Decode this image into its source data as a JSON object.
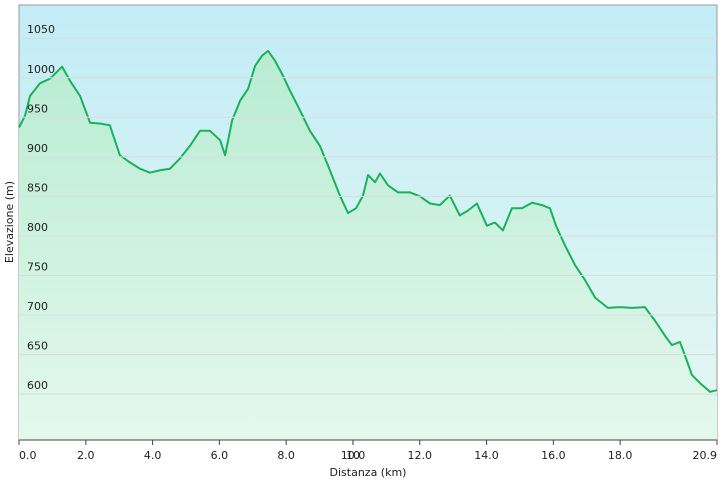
{
  "chart_data": {
    "type": "area",
    "xlabel": "Distanza  (km)",
    "ylabel": "Elevazione (m)",
    "x": [
      0,
      0.18,
      0.33,
      0.63,
      0.93,
      1.29,
      1.53,
      1.83,
      2.13,
      2.43,
      2.72,
      3.02,
      3.32,
      3.62,
      3.92,
      4.22,
      4.52,
      4.82,
      5.12,
      5.42,
      5.72,
      6.02,
      6.17,
      6.38,
      6.62,
      6.86,
      7.07,
      7.28,
      7.46,
      7.66,
      7.9,
      8.11,
      8.41,
      8.71,
      9.01,
      9.31,
      9.61,
      9.85,
      10.09,
      10.3,
      10.45,
      10.66,
      10.81,
      11.05,
      11.35,
      11.71,
      12.01,
      12.31,
      12.6,
      12.9,
      13.2,
      13.44,
      13.71,
      14.01,
      14.25,
      14.49,
      14.76,
      15.06,
      15.36,
      15.66,
      15.9,
      16.08,
      16.35,
      16.65,
      16.95,
      17.25,
      17.63,
      17.99,
      18.35,
      18.74,
      19.04,
      19.34,
      19.55,
      19.79,
      19.94,
      20.15,
      20.39,
      20.69,
      20.9
    ],
    "values": [
      937,
      952,
      977,
      993,
      999,
      1014,
      996,
      977,
      943,
      942,
      940,
      902,
      893,
      885,
      880,
      883,
      885,
      898,
      914,
      933,
      933,
      921,
      902,
      946,
      971,
      986,
      1015,
      1028,
      1034,
      1022,
      1003,
      984,
      959,
      933,
      914,
      883,
      851,
      829,
      835,
      851,
      877,
      868,
      879,
      864,
      855,
      855,
      850,
      841,
      839,
      851,
      826,
      832,
      841,
      813,
      817,
      807,
      835,
      835,
      842,
      839,
      835,
      813,
      788,
      763,
      744,
      722,
      709,
      710,
      709,
      710,
      693,
      674,
      662,
      666,
      649,
      624,
      614,
      603,
      605
    ],
    "color": "#19b25a",
    "xlim": [
      0,
      20.9
    ],
    "xticks": [
      {
        "value": 0,
        "label": "0.0"
      },
      {
        "value": 2,
        "label": "2.0"
      },
      {
        "value": 4,
        "label": "4.0"
      },
      {
        "value": 6,
        "label": "6.0"
      },
      {
        "value": 8,
        "label": "8.0"
      },
      10.0,
      {
        "value": 10,
        "label": "10.0"
      },
      {
        "value": 12,
        "label": "12.0"
      },
      {
        "value": 14,
        "label": "14.0"
      },
      {
        "value": 16,
        "label": "16.0"
      },
      {
        "value": 18,
        "label": "18.0"
      },
      20.9
    ],
    "ylim": [
      542,
      1092
    ],
    "yticks": [
      600,
      650,
      700,
      750,
      800,
      850,
      900,
      950,
      1000,
      1050
    ],
    "grid": true
  }
}
